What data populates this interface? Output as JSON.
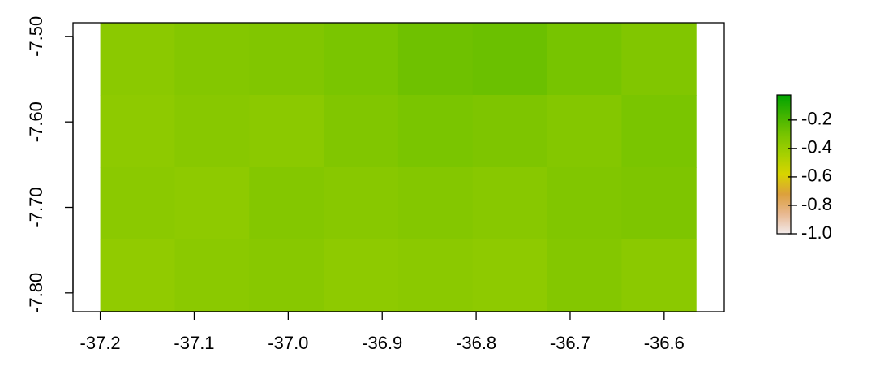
{
  "chart_data": {
    "type": "raster",
    "xlim": [
      -37.229,
      -36.536
    ],
    "ylim": [
      -7.822,
      -7.484
    ],
    "xticks": [
      -37.2,
      -37.1,
      {
        "value": -37.0,
        "label": "-37.0"
      },
      -36.9,
      -36.8,
      -36.7,
      -36.6
    ],
    "yticks": [
      {
        "value": -7.5,
        "label": "-7.50"
      },
      {
        "value": -7.6,
        "label": "-7.60"
      },
      {
        "value": -7.7,
        "label": "-7.70"
      },
      {
        "value": -7.8,
        "label": "-7.80"
      }
    ],
    "extent": [
      -37.2,
      -36.566,
      -7.822,
      -7.484
    ],
    "values": [
      [
        -0.36,
        -0.34,
        -0.33,
        -0.31,
        -0.28,
        -0.27,
        -0.3,
        -0.33
      ],
      [
        -0.37,
        -0.35,
        -0.36,
        -0.33,
        -0.31,
        -0.32,
        -0.34,
        -0.31
      ],
      [
        -0.36,
        -0.37,
        -0.34,
        -0.35,
        -0.34,
        -0.35,
        -0.33,
        -0.32
      ],
      [
        -0.38,
        -0.36,
        -0.35,
        -0.37,
        -0.36,
        -0.37,
        -0.34,
        -0.36
      ]
    ],
    "colorbar": {
      "lim": [
        -1.0,
        -0.024
      ],
      "ticks": [
        -0.2,
        -0.4,
        -0.6,
        -0.8,
        {
          "value": -1.0,
          "label": "-1.0"
        }
      ],
      "colors": [
        "#f2eaea",
        "#e8b890",
        "#dca03c",
        "#d8d400",
        "#a6d000",
        "#78c400",
        "#3fb300",
        "#00a300"
      ]
    }
  }
}
